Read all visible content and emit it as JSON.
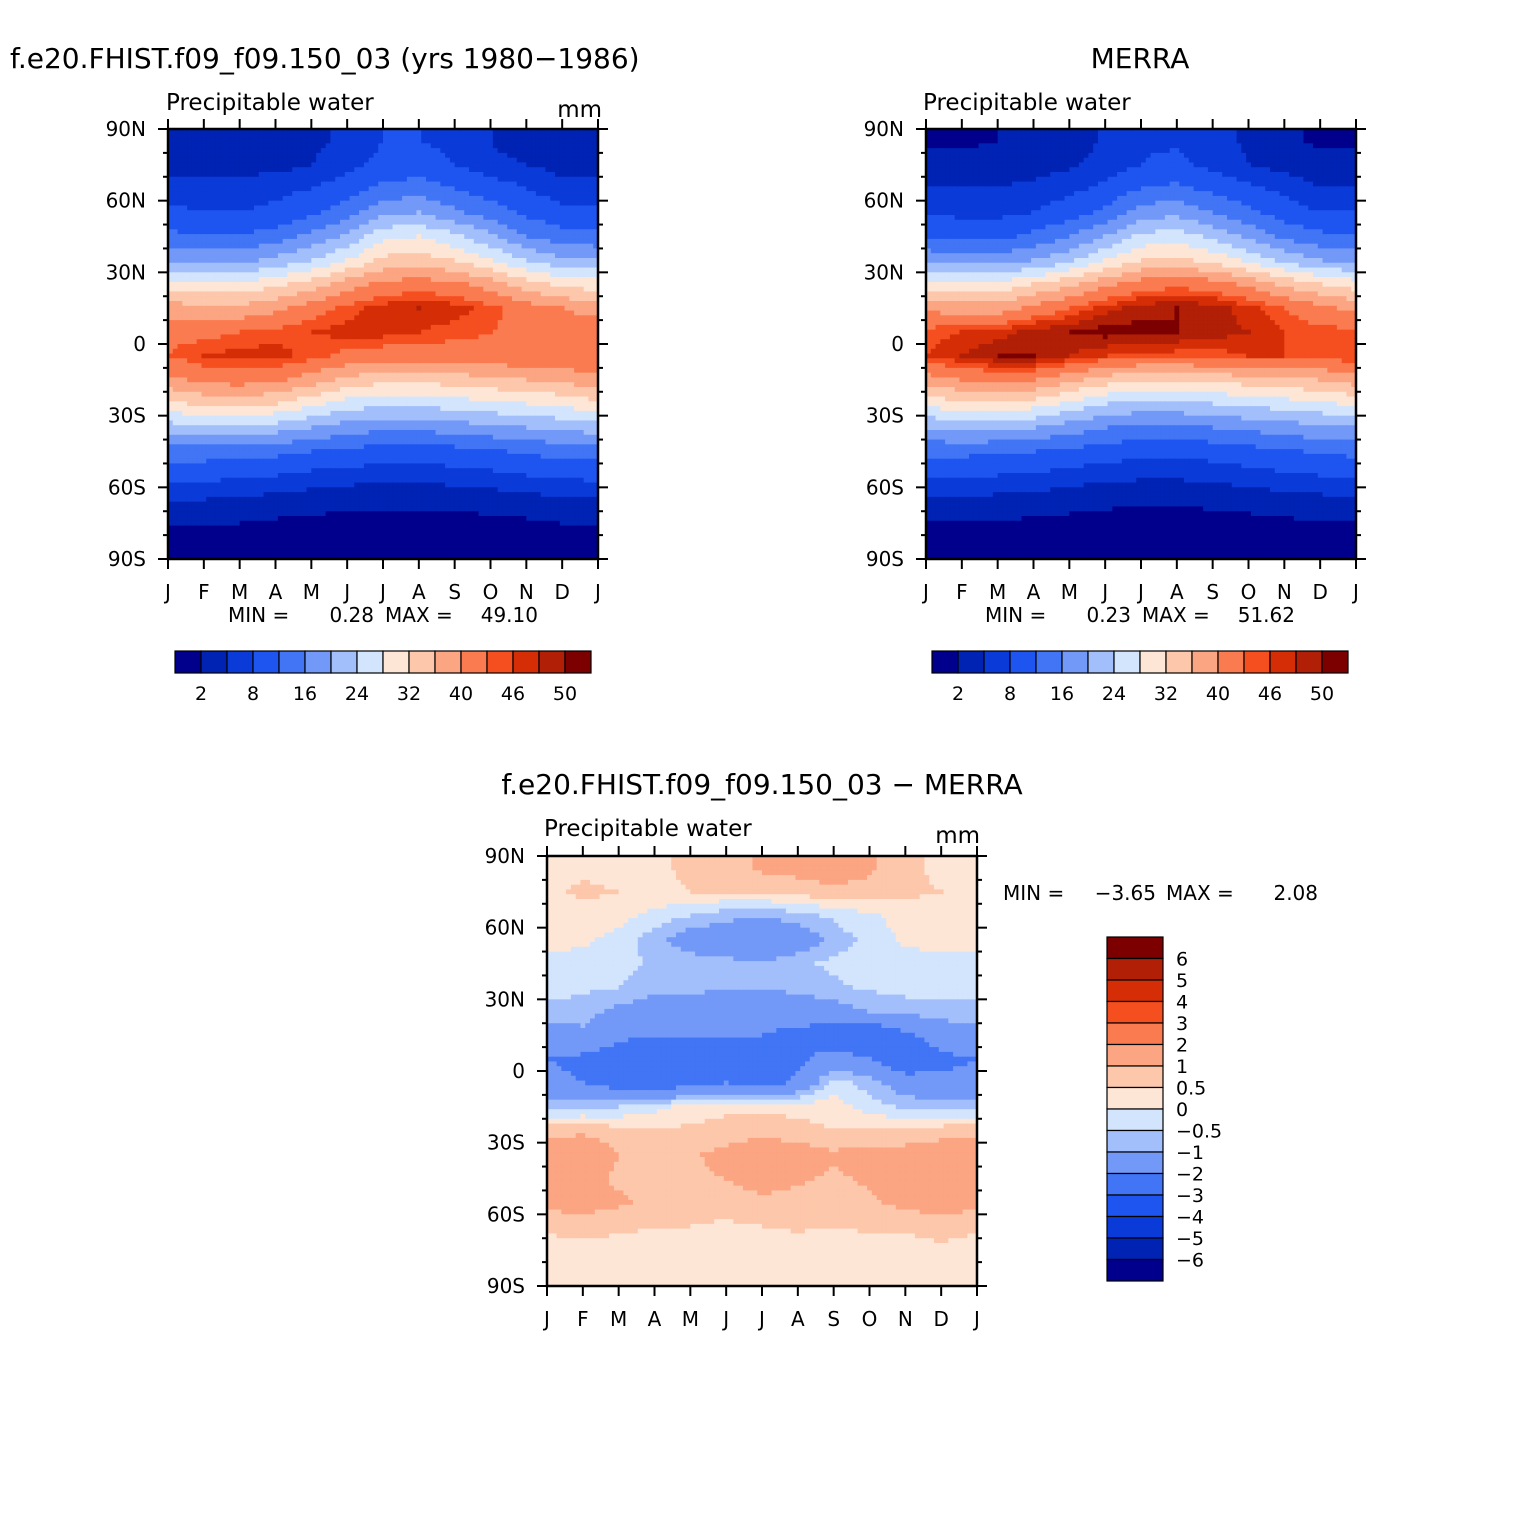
{
  "colors": {
    "abs_palette": [
      "#00008c",
      "#0023b4",
      "#0a3ad8",
      "#1e55f0",
      "#4175f5",
      "#7399f8",
      "#a2bffb",
      "#d3e5fd",
      "#fee6d6",
      "#fdc7ab",
      "#fca582",
      "#fb7b50",
      "#f54f20",
      "#d52e07",
      "#b01f06",
      "#7c0000"
    ],
    "diff_palette": [
      "#00008c",
      "#0023b4",
      "#0a3ad8",
      "#1e55f0",
      "#4175f5",
      "#7399f8",
      "#a2bffb",
      "#d3e5fd",
      "#fee6d6",
      "#fdc7ab",
      "#fca582",
      "#fb7b50",
      "#f54f20",
      "#d52e07",
      "#b01f06",
      "#7c0000"
    ]
  },
  "chart_data": [
    {
      "type": "heatmap",
      "id": "model",
      "title": "f.e20.FHIST.f09_f09.150_03 (yrs 1980-1986)",
      "subtitle_left": "Precipitable water",
      "subtitle_right": "mm",
      "x_ticks": [
        "J",
        "F",
        "M",
        "A",
        "M",
        "J",
        "J",
        "A",
        "S",
        "O",
        "N",
        "D",
        "J"
      ],
      "y_ticks": [
        "90N",
        "60N",
        "30N",
        "0",
        "30S",
        "60S",
        "90S"
      ],
      "ylim": [
        -90,
        90
      ],
      "x_months": [
        0,
        1,
        2,
        3,
        4,
        5,
        6,
        7,
        8,
        9,
        10,
        11,
        12
      ],
      "lats": [
        -85,
        -75,
        -65,
        -55,
        -45,
        -35,
        -25,
        -15,
        -5,
        5,
        15,
        25,
        35,
        45,
        55,
        65,
        75,
        85
      ],
      "values": [
        [
          0.5,
          0.5,
          0.5,
          0.5,
          0.4,
          0.3,
          0.3,
          0.3,
          0.3,
          0.4,
          0.5,
          0.5,
          0.5
        ],
        [
          2,
          2,
          2,
          1.5,
          1.2,
          1,
          0.8,
          0.8,
          1,
          1.2,
          1.5,
          2,
          2
        ],
        [
          5,
          5,
          4.5,
          4,
          3.5,
          3,
          2.8,
          2.8,
          3,
          3.5,
          4,
          4.5,
          5
        ],
        [
          9,
          9,
          8.5,
          8,
          7,
          6.5,
          6,
          6,
          6.5,
          7,
          8,
          8.5,
          9
        ],
        [
          14,
          14,
          13.5,
          13,
          12,
          11,
          10,
          10,
          10.5,
          11.5,
          12.5,
          13.5,
          14
        ],
        [
          22,
          23,
          23,
          22,
          20,
          18,
          17,
          17,
          18,
          19,
          20,
          21,
          22
        ],
        [
          31,
          33,
          33,
          32,
          29,
          26,
          25,
          25,
          26,
          27,
          28,
          29,
          31
        ],
        [
          39,
          41,
          42,
          41,
          38,
          35,
          33,
          33,
          34,
          35,
          36,
          37,
          39
        ],
        [
          44,
          46,
          47,
          47,
          45,
          43,
          42,
          42,
          42,
          43,
          43,
          43,
          44
        ],
        [
          43,
          43,
          44,
          45,
          46,
          47,
          47,
          46,
          45,
          44,
          43,
          43,
          43
        ],
        [
          38,
          37,
          37,
          39,
          42,
          45,
          47,
          48,
          47,
          45,
          42,
          40,
          38
        ],
        [
          30,
          29,
          29,
          31,
          34,
          38,
          41,
          42,
          41,
          38,
          34,
          31,
          30
        ],
        [
          20,
          19,
          19,
          21,
          24,
          28,
          33,
          34,
          32,
          28,
          24,
          21,
          20
        ],
        [
          13,
          12,
          12,
          14,
          17,
          21,
          27,
          28,
          25,
          21,
          16,
          14,
          13
        ],
        [
          9,
          8,
          8,
          9,
          11,
          14,
          19,
          20,
          17,
          14,
          11,
          9,
          9
        ],
        [
          6,
          6,
          6,
          7,
          8,
          10,
          13,
          14,
          12,
          10,
          8,
          6,
          6
        ],
        [
          4,
          4,
          4,
          4,
          5,
          7,
          9,
          10,
          8,
          6,
          5,
          4,
          4
        ],
        [
          2.5,
          2.5,
          2.5,
          3,
          4,
          6,
          8,
          8,
          7,
          5,
          3,
          2.5,
          2.5
        ]
      ],
      "levels": [
        2,
        5,
        8,
        12,
        16,
        20,
        24,
        28,
        32,
        36,
        40,
        44,
        46,
        48,
        50
      ],
      "min_label": "MIN =",
      "min_value": "0.28",
      "max_label": "MAX =",
      "max_value": "49.10",
      "colorbar_labels": [
        "2",
        "8",
        "16",
        "24",
        "32",
        "40",
        "46",
        "50"
      ]
    },
    {
      "type": "heatmap",
      "id": "obs",
      "title": "MERRA",
      "subtitle_left": "Precipitable water",
      "subtitle_right": "",
      "x_ticks": [
        "J",
        "F",
        "M",
        "A",
        "M",
        "J",
        "J",
        "A",
        "S",
        "O",
        "N",
        "D",
        "J"
      ],
      "y_ticks": [
        "90N",
        "60N",
        "30N",
        "0",
        "30S",
        "60S",
        "90S"
      ],
      "ylim": [
        -90,
        90
      ],
      "x_months": [
        0,
        1,
        2,
        3,
        4,
        5,
        6,
        7,
        8,
        9,
        10,
        11,
        12
      ],
      "lats": [
        -85,
        -75,
        -65,
        -55,
        -45,
        -35,
        -25,
        -15,
        -5,
        5,
        15,
        25,
        35,
        45,
        55,
        65,
        75,
        85
      ],
      "values": [
        [
          0.4,
          0.4,
          0.4,
          0.4,
          0.3,
          0.25,
          0.25,
          0.25,
          0.3,
          0.3,
          0.4,
          0.4,
          0.4
        ],
        [
          1.8,
          1.8,
          1.8,
          1.4,
          1.1,
          0.9,
          0.7,
          0.7,
          0.9,
          1.1,
          1.4,
          1.8,
          1.8
        ],
        [
          4.5,
          4.5,
          4.2,
          3.8,
          3.3,
          2.8,
          2.6,
          2.6,
          2.8,
          3.3,
          3.8,
          4.2,
          4.5
        ],
        [
          8.5,
          8.5,
          8,
          7.5,
          6.5,
          6,
          5.5,
          5.5,
          6,
          6.5,
          7.5,
          8,
          8.5
        ],
        [
          13,
          13,
          12.5,
          12,
          11,
          10,
          9,
          9,
          9.5,
          10.5,
          11.5,
          12.5,
          13
        ],
        [
          20,
          21,
          21,
          20,
          18,
          16,
          15,
          15,
          16,
          17,
          18,
          19,
          20
        ],
        [
          29,
          31,
          31,
          30,
          27,
          24,
          23,
          23,
          24,
          25,
          26,
          27,
          29
        ],
        [
          38,
          40,
          41,
          40,
          37,
          34,
          32,
          32,
          33,
          34,
          35,
          36,
          38
        ],
        [
          46,
          48,
          50,
          50,
          48,
          46,
          45,
          45,
          45,
          46,
          46,
          45,
          46
        ],
        [
          45,
          46,
          47,
          49,
          50,
          51,
          51,
          50,
          49,
          48,
          46,
          45,
          45
        ],
        [
          39,
          38,
          38,
          41,
          44,
          47,
          49,
          50,
          49,
          47,
          44,
          41,
          39
        ],
        [
          30,
          29,
          29,
          32,
          35,
          39,
          42,
          43,
          42,
          39,
          35,
          32,
          30
        ],
        [
          19,
          18,
          18,
          20,
          23,
          28,
          32,
          33,
          31,
          27,
          23,
          20,
          19
        ],
        [
          12,
          11,
          11,
          13,
          16,
          20,
          25,
          26,
          23,
          19,
          15,
          13,
          12
        ],
        [
          8,
          7,
          7,
          8,
          10,
          13,
          18,
          19,
          16,
          13,
          10,
          8,
          8
        ],
        [
          5,
          5,
          5,
          6,
          7,
          9,
          12,
          13,
          11,
          9,
          7,
          5,
          5
        ],
        [
          3,
          3,
          3,
          3.5,
          4.5,
          6,
          8,
          9,
          7,
          5,
          4,
          3,
          3
        ],
        [
          1.5,
          1.5,
          2,
          2.5,
          3.5,
          5.5,
          7.5,
          7.5,
          6,
          4.5,
          2.5,
          1.5,
          1.5
        ]
      ],
      "levels": [
        2,
        5,
        8,
        12,
        16,
        20,
        24,
        28,
        32,
        36,
        40,
        44,
        46,
        48,
        50
      ],
      "min_label": "MIN =",
      "min_value": "0.23",
      "max_label": "MAX =",
      "max_value": "51.62",
      "colorbar_labels": [
        "2",
        "8",
        "16",
        "24",
        "32",
        "40",
        "46",
        "50"
      ]
    },
    {
      "type": "heatmap",
      "id": "diff",
      "title": "f.e20.FHIST.f09_f09.150_03 - MERRA",
      "subtitle_left": "Precipitable water",
      "subtitle_right": "mm",
      "x_ticks": [
        "J",
        "F",
        "M",
        "A",
        "M",
        "J",
        "J",
        "A",
        "S",
        "O",
        "N",
        "D",
        "J"
      ],
      "y_ticks": [
        "90N",
        "60N",
        "30N",
        "0",
        "30S",
        "60S",
        "90S"
      ],
      "ylim": [
        -90,
        90
      ],
      "x_months": [
        0,
        1,
        2,
        3,
        4,
        5,
        6,
        7,
        8,
        9,
        10,
        11,
        12
      ],
      "lats": [
        -85,
        -75,
        -65,
        -55,
        -45,
        -35,
        -25,
        -15,
        -5,
        5,
        15,
        25,
        35,
        45,
        55,
        65,
        75,
        85
      ],
      "values": [
        [
          0.2,
          0.2,
          0.2,
          0.2,
          0.2,
          0.2,
          0.2,
          0.2,
          0.2,
          0.2,
          0.2,
          0.2,
          0.2
        ],
        [
          0.3,
          0.3,
          0.3,
          0.3,
          0.3,
          0.2,
          0.2,
          0.2,
          0.2,
          0.3,
          0.3,
          0.4,
          0.3
        ],
        [
          0.6,
          0.7,
          0.6,
          0.5,
          0.5,
          0.4,
          0.5,
          0.6,
          0.5,
          0.6,
          0.6,
          0.7,
          0.6
        ],
        [
          1.2,
          1.3,
          1.1,
          0.8,
          0.7,
          0.8,
          0.9,
          0.8,
          0.7,
          0.9,
          1.2,
          1.3,
          1.2
        ],
        [
          1.1,
          1.2,
          0.9,
          0.8,
          0.9,
          1,
          1.2,
          1.1,
          0.9,
          1.1,
          1.3,
          1.2,
          1.1
        ],
        [
          1.3,
          1.5,
          1,
          0.8,
          0.9,
          1.2,
          1.5,
          1.3,
          1.1,
          1.2,
          1.2,
          1.3,
          1.3
        ],
        [
          0.8,
          0.9,
          0.7,
          0.6,
          0.6,
          0.7,
          0.8,
          0.7,
          0.5,
          0.6,
          0.7,
          0.8,
          0.8
        ],
        [
          -0.6,
          -0.6,
          -0.5,
          -0.2,
          0.2,
          0.4,
          0.4,
          0.3,
          0.3,
          -0.3,
          -0.6,
          -0.7,
          -0.6
        ],
        [
          -1.8,
          -2,
          -2.5,
          -2.8,
          -2.3,
          -2,
          -2.5,
          -1.8,
          -0.3,
          -0.7,
          -1.5,
          -1.8,
          -1.8
        ],
        [
          -2,
          -2.2,
          -2.5,
          -3,
          -2.8,
          -2.5,
          -2.5,
          -2.2,
          -1.5,
          -2,
          -2.8,
          -2.2,
          -2
        ],
        [
          -1.3,
          -1.2,
          -1.8,
          -2,
          -2,
          -2,
          -2,
          -2.2,
          -2.8,
          -3,
          -2.2,
          -1.5,
          -1.3
        ],
        [
          -0.7,
          -0.7,
          -1.2,
          -1.4,
          -1.6,
          -1.8,
          -1.8,
          -1.5,
          -1.3,
          -1,
          -0.8,
          -0.7,
          -0.7
        ],
        [
          -0.3,
          -0.4,
          -0.5,
          -0.8,
          -0.8,
          -0.9,
          -1,
          -0.8,
          -0.6,
          -0.4,
          -0.3,
          -0.3,
          -0.3
        ],
        [
          -0.2,
          -0.2,
          -0.3,
          -0.6,
          -0.7,
          -0.8,
          -0.9,
          -0.6,
          -0.4,
          -0.2,
          -0.2,
          -0.2,
          -0.2
        ],
        [
          0.2,
          0.1,
          -0.2,
          -0.8,
          -1.4,
          -1.6,
          -2,
          -1.5,
          -0.8,
          -0.3,
          0.1,
          0.2,
          0.2
        ],
        [
          0.3,
          0.3,
          0.2,
          -0.2,
          -0.5,
          -0.8,
          -1,
          -0.7,
          -0.4,
          -0.1,
          0.2,
          0.3,
          0.3
        ],
        [
          0.4,
          0.6,
          0.5,
          0.4,
          0.5,
          0.5,
          0.6,
          0.7,
          0.9,
          0.8,
          0.6,
          0.5,
          0.4
        ],
        [
          0.3,
          0.4,
          0.3,
          0.4,
          0.6,
          0.8,
          1.1,
          1.2,
          1.3,
          1.1,
          0.6,
          0.4,
          0.3
        ]
      ],
      "levels": [
        -6,
        -5,
        -4,
        -3,
        -2,
        -1,
        -0.5,
        0,
        0.5,
        1,
        2,
        3,
        4,
        5,
        6
      ],
      "min_label": "MIN =",
      "min_value": "-3.65",
      "max_label": "MAX =",
      "max_value": "2.08",
      "colorbar_labels": [
        "6",
        "5",
        "4",
        "3",
        "2",
        "1",
        "0.5",
        "0",
        "-0.5",
        "-1",
        "-2",
        "-3",
        "-4",
        "-5",
        "-6"
      ]
    }
  ]
}
